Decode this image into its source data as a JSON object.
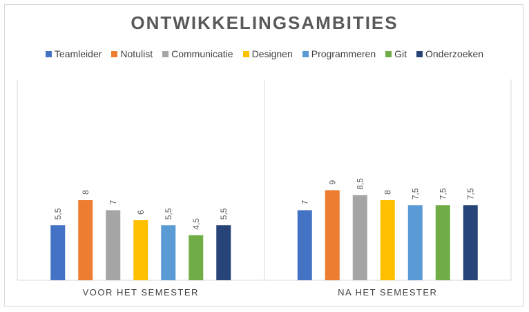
{
  "chart_data": {
    "type": "bar",
    "title": "ONTWIKKELINGSAMBITIES",
    "categories": [
      "VOOR HET SEMESTER",
      "NA HET SEMESTER"
    ],
    "series": [
      {
        "name": "Teamleider",
        "color": "#4472C4",
        "values": [
          5.5,
          7
        ],
        "labels": [
          "5,5",
          "7"
        ]
      },
      {
        "name": "Notulist",
        "color": "#ED7D31",
        "values": [
          8,
          9
        ],
        "labels": [
          "8",
          "9"
        ]
      },
      {
        "name": "Communicatie",
        "color": "#A5A5A5",
        "values": [
          7,
          8.5
        ],
        "labels": [
          "7",
          "8,5"
        ]
      },
      {
        "name": "Designen",
        "color": "#FFC000",
        "values": [
          6,
          8
        ],
        "labels": [
          "6",
          "8"
        ]
      },
      {
        "name": "Programmeren",
        "color": "#5B9BD5",
        "values": [
          5.5,
          7.5
        ],
        "labels": [
          "5,5",
          "7,5"
        ]
      },
      {
        "name": "Git",
        "color": "#70AD47",
        "values": [
          4.5,
          7.5
        ],
        "labels": [
          "4,5",
          "7,5"
        ]
      },
      {
        "name": "Onderzoeken",
        "color": "#264478",
        "values": [
          5.5,
          7.5
        ],
        "labels": [
          "5,5",
          "7,5"
        ]
      }
    ],
    "ylim": [
      0,
      10
    ],
    "legend_position": "top",
    "grid": false
  }
}
